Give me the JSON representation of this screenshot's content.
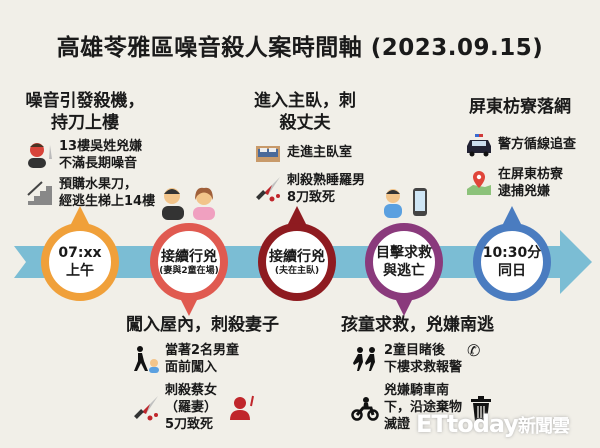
{
  "title": "高雄苓雅區噪音殺人案時間軸 (2023.09.15)",
  "colors": {
    "background": "#f1efe8",
    "arrow": "#7bbdd4",
    "orange": "#f0a03a",
    "red": "#e05a50",
    "dark_red": "#8e1b20",
    "purple": "#8a3a7c",
    "blue": "#4a7cc0"
  },
  "timeline": [
    {
      "line1": "07:xx",
      "line2": "上午",
      "color": "#f0a03a"
    },
    {
      "line1": "接續行兇",
      "line2": "(妻與2童在場)",
      "color": "#e05a50"
    },
    {
      "line1": "接續行兇",
      "line2": "(夫在主臥)",
      "color": "#8e1b20"
    },
    {
      "line1": "目擊求救",
      "line2": "與逃亡",
      "color": "#8a3a7c"
    },
    {
      "line1": "10:30分",
      "line2": "同日",
      "color": "#4a7cc0"
    }
  ],
  "top1": {
    "head1": "噪音引發殺機，",
    "head2": "持刀上樓",
    "items": [
      {
        "icon": "angry-man-knife",
        "l1": "13樓吳姓兇嫌",
        "l2": "不滿長期噪音"
      },
      {
        "icon": "stairs",
        "l1": "預購水果刀，",
        "l2": "經逃生梯上14樓"
      }
    ]
  },
  "top2": {
    "head1": "進入主臥，刺",
    "head2": "殺丈夫",
    "items": [
      {
        "icon": "bed",
        "l1": "走進主臥室"
      },
      {
        "icon": "bloody-knife",
        "l1": "刺殺熟睡羅男",
        "l2": "8刀致死"
      }
    ]
  },
  "top3": {
    "head": "屏東枋寮落網",
    "items": [
      {
        "icon": "police-car",
        "l1": "警方循線追查"
      },
      {
        "icon": "map-pin",
        "l1": "在屏東枋寮",
        "l2": "逮捕兇嫌"
      }
    ]
  },
  "bottom1": {
    "head": "闖入屋內，刺殺妻子",
    "items": [
      {
        "icon": "intruder-child",
        "l1": "當著2名男童",
        "l2": "面前闖入"
      },
      {
        "icon": "bloody-knife",
        "l1": "刺殺蔡女",
        "l2": "（羅妻）",
        "l3": "5刀致死"
      }
    ]
  },
  "bottom2": {
    "head": "孩童求救，兇嫌南逃",
    "items": [
      {
        "icon": "running-kids",
        "l1": "2童目睹後",
        "l2": "下樓求救報警"
      },
      {
        "icon": "motorcycle",
        "l1": "兇嫌騎車南",
        "l2": "下，沿途棄物",
        "l3": "滅證"
      }
    ]
  },
  "watermark": {
    "brand": "ETtoday",
    "suffix": "新聞雲"
  }
}
